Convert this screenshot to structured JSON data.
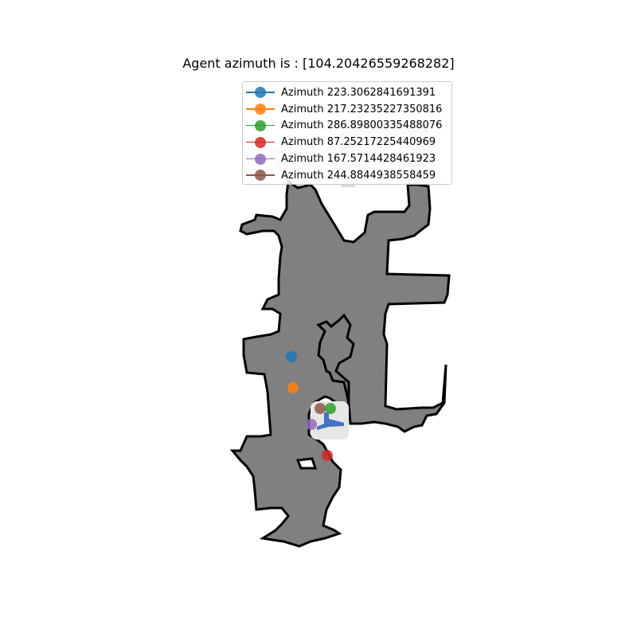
{
  "chart_data": {
    "type": "scatter",
    "title": "Agent azimuth is : [104.20426559268282]",
    "xlabel": "",
    "ylabel": "",
    "grid": false,
    "legend_position": "upper-center",
    "series": [
      {
        "name": "Azimuth 223.3062841691391",
        "color": "#1f77b4",
        "x": [
          366
        ],
        "y": [
          448
        ]
      },
      {
        "name": "Azimuth 217.23235227350816",
        "color": "#ff7f0e",
        "x": [
          368
        ],
        "y": [
          487
        ]
      },
      {
        "name": "Azimuth 286.89800335488076",
        "color": "#2ca02c",
        "x": [
          415
        ],
        "y": [
          513
        ]
      },
      {
        "name": "Azimuth 87.25217225440969",
        "color": "#d62728",
        "x": [
          411
        ],
        "y": [
          572
        ]
      },
      {
        "name": "Azimuth 167.5714428461923",
        "color": "#9467bd",
        "x": [
          391
        ],
        "y": [
          533
        ]
      },
      {
        "name": "Azimuth 244.8844938558459",
        "color": "#8c564b",
        "x": [
          402
        ],
        "y": [
          513
        ]
      }
    ],
    "agent": {
      "x": 412,
      "y": 528,
      "color": "#4472c4"
    },
    "colors": {
      "free_space": "#808080",
      "wall": "#000000",
      "explored": "#d9d9d9",
      "background": "#ffffff"
    }
  }
}
